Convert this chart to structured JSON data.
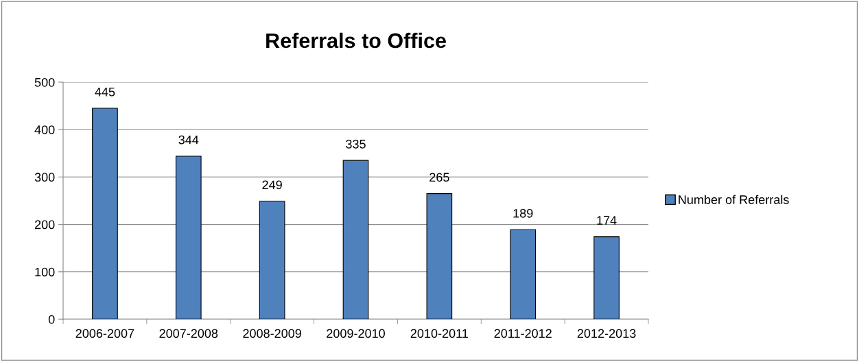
{
  "chart_data": {
    "type": "bar",
    "title": "Referrals to Office",
    "categories": [
      "2006-2007",
      "2007-2008",
      "2008-2009",
      "2009-2010",
      "2010-2011",
      "2011-2012",
      "2012-2013"
    ],
    "series": [
      {
        "name": "Number of Referrals",
        "color": "#4f81bd",
        "values": [
          445,
          344,
          249,
          335,
          265,
          189,
          174
        ]
      }
    ],
    "ylim": [
      0,
      500
    ],
    "yticks": [
      0,
      100,
      200,
      300,
      400,
      500
    ],
    "grid": "y",
    "legend": "right",
    "data_labels": true
  }
}
